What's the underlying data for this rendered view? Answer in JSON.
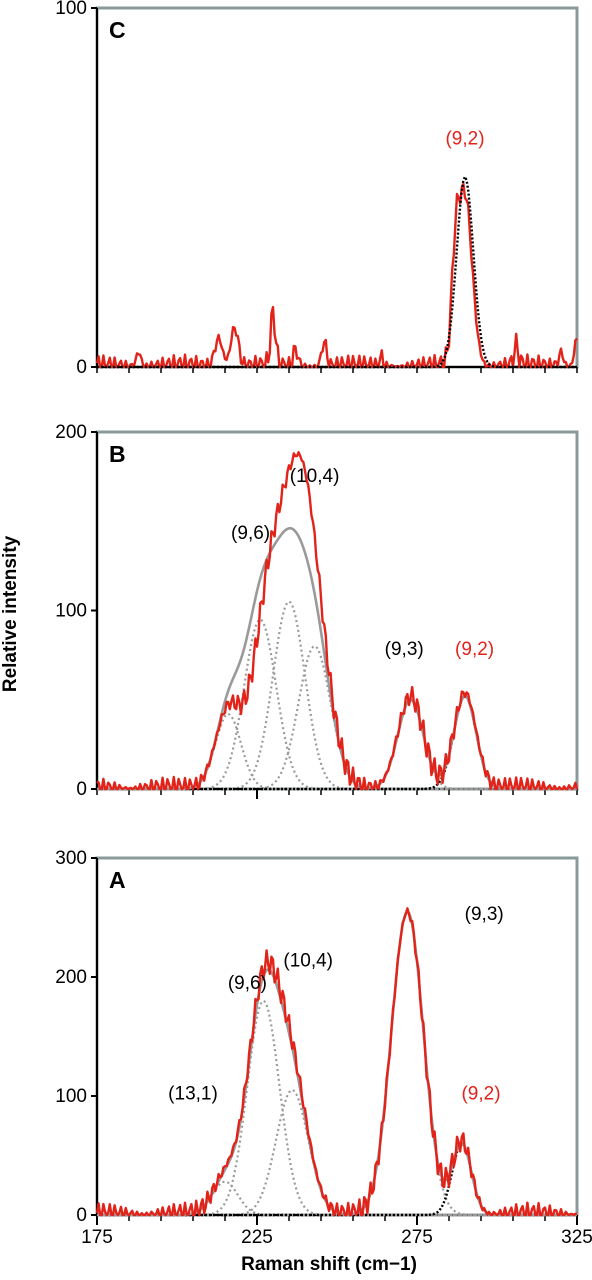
{
  "colors": {
    "measured": "#e2231a",
    "fit_component": "#9a9a9a",
    "highlight_fit": "#000000",
    "frame": "#8a9a9a",
    "highlight_label": "#e2231a",
    "normal_label": "#000000"
  },
  "chart_data": [
    {
      "type": "line",
      "panel": "C",
      "ylim": [
        0,
        100
      ],
      "xlim": [
        175,
        325
      ],
      "y_ticks": [
        0,
        100
      ],
      "x_ticks": [],
      "peak_labels": [
        {
          "text": "(9,2)",
          "x": 290,
          "y": 62,
          "highlight": true
        }
      ],
      "series": [
        {
          "style": "measured",
          "peaks": [
            [
              290,
              48,
              2.2
            ],
            [
              287,
              22,
              1.2
            ],
            [
              188,
              4,
              0.8
            ],
            [
              213,
              8,
              1.2
            ],
            [
              218,
              11,
              1.2
            ],
            [
              230,
              15,
              0.8
            ],
            [
              237,
              5,
              0.8
            ],
            [
              246,
              7,
              0.8
            ],
            [
              264,
              3,
              0.5
            ],
            [
              306,
              6,
              0.8
            ],
            [
              320,
              4,
              0.8
            ],
            [
              325,
              8,
              0.8
            ]
          ]
        },
        {
          "style": "highlight_fit",
          "peaks": [
            [
              290,
              53,
              2.6
            ]
          ]
        }
      ]
    },
    {
      "type": "line",
      "panel": "B",
      "ylim": [
        0,
        200
      ],
      "xlim": [
        175,
        325
      ],
      "y_ticks": [
        0,
        100,
        200
      ],
      "x_ticks": [
        225
      ],
      "ylabel": "Relative intensity",
      "peak_labels": [
        {
          "text": "(10,4)",
          "x": 243,
          "y": 172,
          "highlight": false
        },
        {
          "text": "(9,6)",
          "x": 223,
          "y": 140,
          "highlight": false
        },
        {
          "text": "(9,3)",
          "x": 271,
          "y": 75,
          "highlight": false
        },
        {
          "text": "(9,2)",
          "x": 293,
          "y": 75,
          "highlight": false,
          "red": true
        }
      ],
      "series": [
        {
          "style": "fit",
          "peaks": [
            [
              216,
              42,
              4
            ]
          ]
        },
        {
          "style": "fit",
          "peaks": [
            [
              226,
              95,
              5
            ]
          ]
        },
        {
          "style": "fit",
          "peaks": [
            [
              235,
              105,
              5
            ]
          ]
        },
        {
          "style": "fit",
          "peaks": [
            [
              243,
              80,
              5
            ]
          ]
        },
        {
          "style": "fit",
          "peaks": [
            [
              273,
              50,
              4
            ]
          ]
        },
        {
          "style": "highlight_fit",
          "peaks": [
            [
              290,
              52,
              3.5
            ]
          ]
        },
        {
          "style": "fit_envelope",
          "peaks": [
            [
              216,
              42,
              4
            ],
            [
              226,
              95,
              5
            ],
            [
              235,
              105,
              5
            ],
            [
              243,
              80,
              5
            ],
            [
              273,
              50,
              4
            ],
            [
              290,
              52,
              3.5
            ]
          ]
        },
        {
          "style": "measured",
          "peaks": [
            [
              216,
              44,
              4
            ],
            [
              229,
              105,
              5
            ],
            [
              238,
              140,
              5
            ],
            [
              244,
              55,
              5
            ],
            [
              273,
              52,
              4
            ],
            [
              290,
              54,
              3.5
            ]
          ]
        }
      ]
    },
    {
      "type": "line",
      "panel": "A",
      "ylim": [
        0,
        300
      ],
      "xlim": [
        175,
        325
      ],
      "y_ticks": [
        0,
        100,
        200,
        300
      ],
      "x_ticks": [
        175,
        225,
        275,
        325
      ],
      "xlabel": "Raman shift (cm−1)",
      "peak_labels": [
        {
          "text": "(9,3)",
          "x": 296,
          "y": 248,
          "highlight": false
        },
        {
          "text": "(10,4)",
          "x": 241,
          "y": 209,
          "highlight": false
        },
        {
          "text": "(9,6)",
          "x": 222,
          "y": 190,
          "highlight": false
        },
        {
          "text": "(13,1)",
          "x": 205,
          "y": 97,
          "highlight": false
        },
        {
          "text": "(9,2)",
          "x": 295,
          "y": 97,
          "highlight": false,
          "red": true
        }
      ],
      "series": [
        {
          "style": "fit",
          "peaks": [
            [
              215,
              28,
              4
            ]
          ]
        },
        {
          "style": "fit",
          "peaks": [
            [
              227,
              180,
              5
            ]
          ]
        },
        {
          "style": "fit",
          "peaks": [
            [
              236,
              105,
              5
            ]
          ]
        },
        {
          "style": "fit",
          "peaks": [
            [
              272,
              255,
              5
            ]
          ]
        },
        {
          "style": "highlight_fit",
          "peaks": [
            [
              289,
              60,
              3
            ]
          ]
        },
        {
          "style": "fit_envelope",
          "peaks": [
            [
              215,
              28,
              4
            ],
            [
              227,
              180,
              5
            ],
            [
              236,
              105,
              5
            ],
            [
              272,
              255,
              5
            ],
            [
              289,
              60,
              3
            ]
          ]
        },
        {
          "style": "measured",
          "peaks": [
            [
              215,
              30,
              4
            ],
            [
              227,
              185,
              5
            ],
            [
              236,
              110,
              5
            ],
            [
              272,
              255,
              5
            ],
            [
              289,
              62,
              3
            ]
          ]
        }
      ]
    }
  ]
}
